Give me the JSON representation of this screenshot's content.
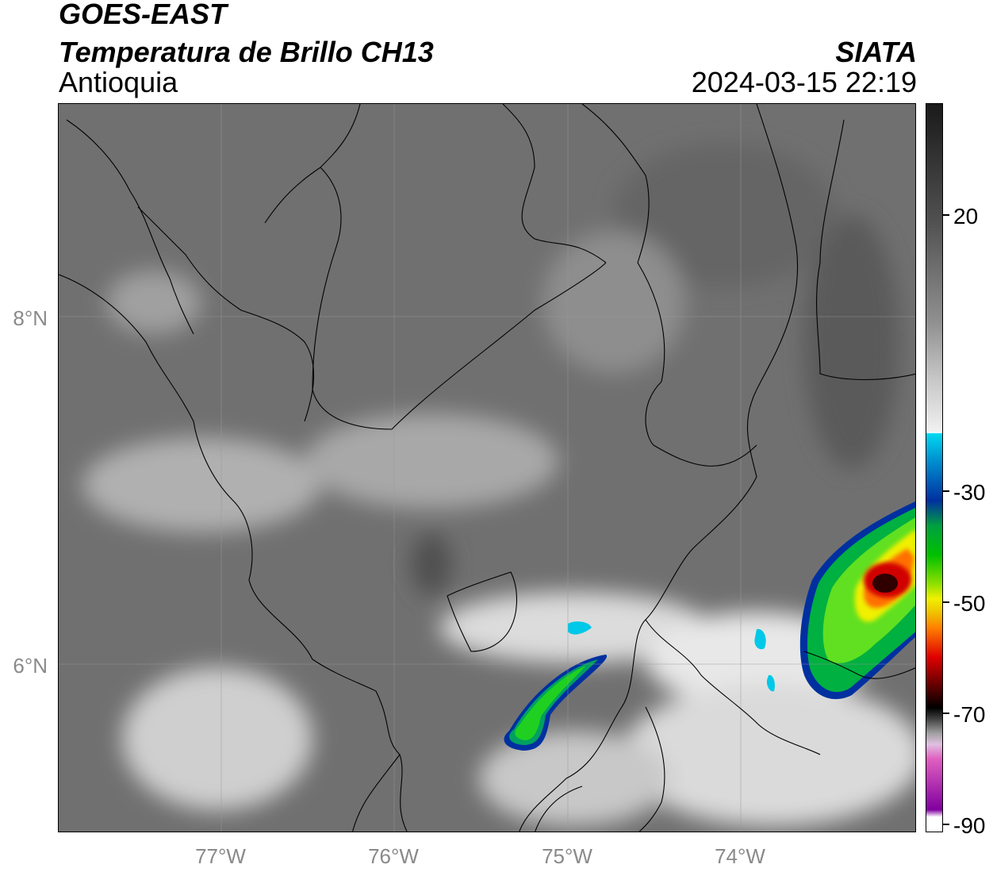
{
  "header": {
    "satellite": "GOES-EAST",
    "product": "Temperatura de Brillo CH13",
    "region": "Antioquia",
    "organization": "SIATA",
    "datetime": "2024-03-15 22:19"
  },
  "axes": {
    "lat_labels": [
      "8°N",
      "6°N"
    ],
    "lon_labels": [
      "77°W",
      "76°W",
      "75°W",
      "74°W"
    ]
  },
  "colorbar": {
    "tick_labels": [
      "20",
      "-30",
      "-50",
      "-70",
      "-90"
    ],
    "colors": {
      "warm_gray_dark": "#1a1a1a",
      "warm_gray_light": "#f0f0f0",
      "cyan": "#00d8f0",
      "blue": "#0030a0",
      "green": "#00c000",
      "yellow": "#f0f000",
      "orange": "#ff8000",
      "red": "#e00000",
      "black": "#000000",
      "pink": "#e060c0",
      "purple": "#8000a0"
    }
  }
}
